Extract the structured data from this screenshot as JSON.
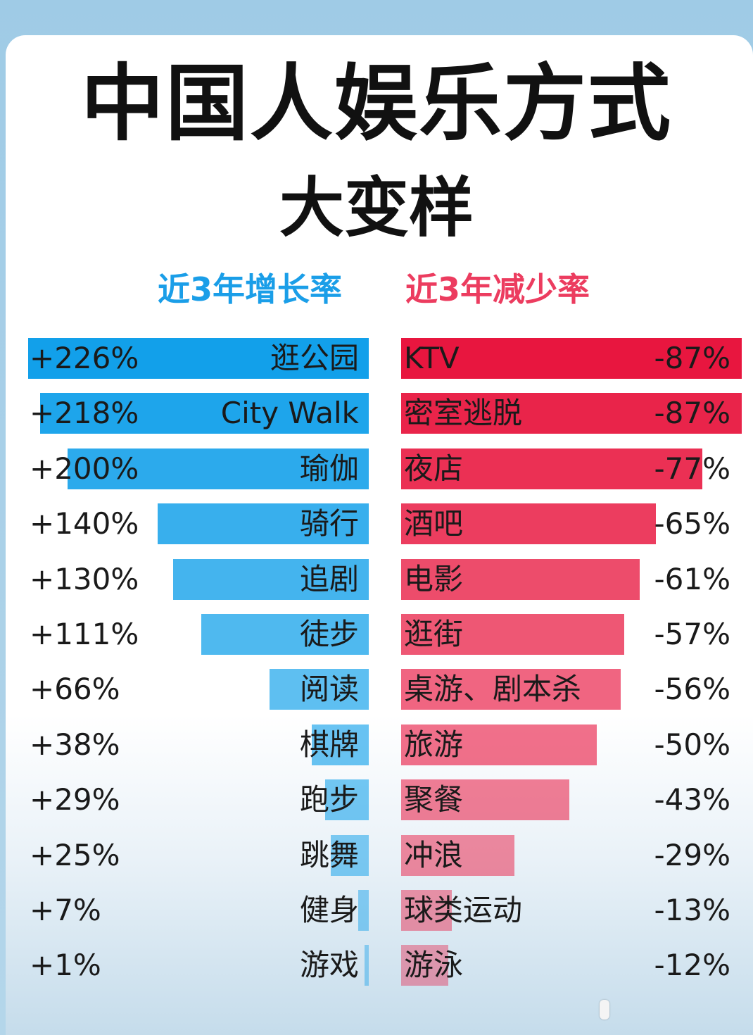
{
  "chart_data": [
    {
      "type": "bar",
      "orientation": "horizontal",
      "title": "中国人娱乐方式",
      "subtitle": "大变样",
      "header": "近3年增长率",
      "categories": [
        "逛公园",
        "City Walk",
        "瑜伽",
        "骑行",
        "追剧",
        "徒步",
        "阅读",
        "棋牌",
        "跑步",
        "跳舞",
        "健身",
        "游戏"
      ],
      "value_labels": [
        "+226%",
        "+218%",
        "+200%",
        "+140%",
        "+130%",
        "+111%",
        "+66%",
        "+38%",
        "+29%",
        "+25%",
        "+7%",
        "+1%"
      ],
      "values": [
        226,
        218,
        200,
        140,
        130,
        111,
        66,
        38,
        29,
        25,
        7,
        1
      ],
      "color": "#12a0ea"
    },
    {
      "type": "bar",
      "orientation": "horizontal",
      "header": "近3年减少率",
      "categories": [
        "KTV",
        "密室逃脱",
        "夜店",
        "酒吧",
        "电影",
        "逛街",
        "桌游、剧本杀",
        "旅游",
        "聚餐",
        "冲浪",
        "球类运动",
        "游泳"
      ],
      "value_labels": [
        "-87%",
        "-87%",
        "-77%",
        "-65%",
        "-61%",
        "-57%",
        "-56%",
        "-50%",
        "-43%",
        "-29%",
        "-13%",
        "-12%"
      ],
      "values": [
        -87,
        -87,
        -77,
        -65,
        -61,
        -57,
        -56,
        -50,
        -43,
        -29,
        -13,
        -12
      ],
      "color": "#e8163f"
    }
  ]
}
